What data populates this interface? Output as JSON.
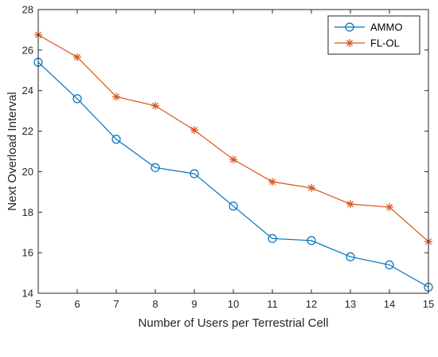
{
  "chart_data": {
    "type": "line",
    "title": "",
    "xlabel": "Number of Users per Terrestrial Cell",
    "ylabel": "Next Overload Interval",
    "x": [
      5,
      6,
      7,
      8,
      9,
      10,
      11,
      12,
      13,
      14,
      15
    ],
    "xlim": [
      5,
      15
    ],
    "ylim": [
      14,
      28
    ],
    "xticks": [
      "5",
      "6",
      "7",
      "8",
      "9",
      "10",
      "11",
      "12",
      "13",
      "14",
      "15"
    ],
    "yticks": [
      "14",
      "16",
      "18",
      "20",
      "22",
      "24",
      "26",
      "28"
    ],
    "grid": false,
    "legend_position": "top-right",
    "series": [
      {
        "name": "AMMO",
        "marker": "circle",
        "color": "#0072BD",
        "values": [
          25.4,
          23.6,
          21.6,
          20.2,
          19.9,
          18.3,
          16.7,
          16.6,
          15.8,
          15.4,
          14.3
        ]
      },
      {
        "name": "FL-OL",
        "marker": "asterisk",
        "color": "#D95319",
        "values": [
          26.75,
          25.65,
          23.7,
          23.25,
          22.05,
          20.6,
          19.5,
          19.2,
          18.4,
          18.25,
          16.55
        ]
      }
    ]
  }
}
